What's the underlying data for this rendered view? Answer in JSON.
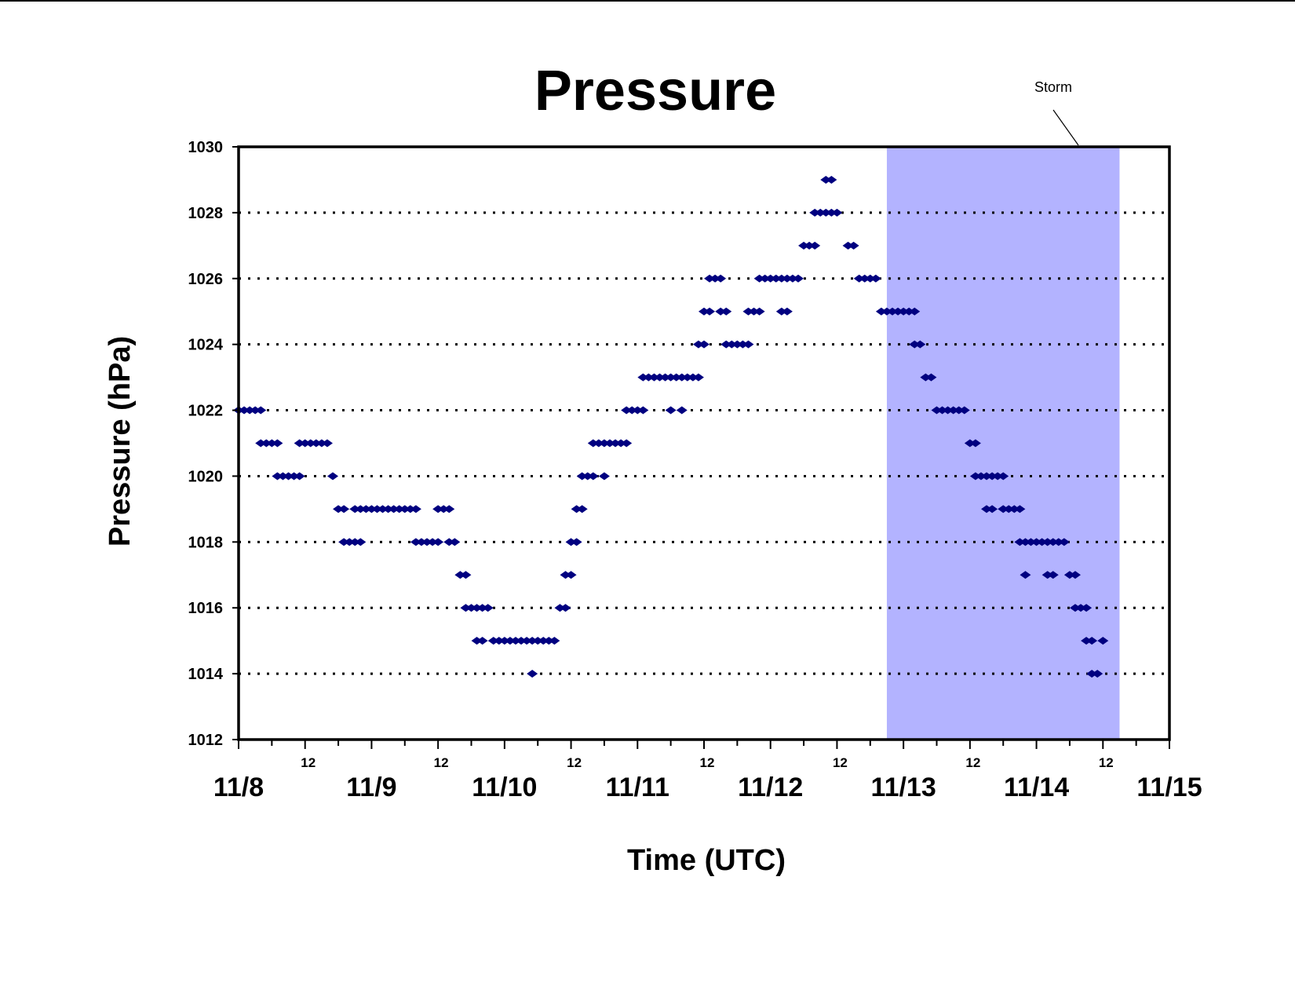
{
  "chart_data": {
    "type": "scatter",
    "title": "Pressure",
    "xlabel": "Time (UTC)",
    "ylabel": "Pressure (hPa)",
    "xlim": [
      "11/8 00",
      "11/15 00"
    ],
    "ylim": [
      1012,
      1030
    ],
    "y_ticks": [
      "1012",
      "1014",
      "1016",
      "1018",
      "1020",
      "1022",
      "1024",
      "1026",
      "1028",
      "1030"
    ],
    "x_major_ticks": [
      "11/8",
      "11/9",
      "11/10",
      "11/11",
      "11/12",
      "11/13",
      "11/14",
      "11/15"
    ],
    "x_minor_label": "12",
    "grid": "horizontal dotted at each major y tick",
    "marker_color": "#000080",
    "shade_color": "#b3b3ff",
    "annotation": {
      "text": "Storm",
      "shaded_range": [
        "11/12 21",
        "11/14 15"
      ]
    },
    "points": [
      [
        "11/8 00",
        1022
      ],
      [
        "11/8 01",
        1022
      ],
      [
        "11/8 02",
        1022
      ],
      [
        "11/8 03",
        1022
      ],
      [
        "11/8 04",
        1022
      ],
      [
        "11/8 04",
        1021
      ],
      [
        "11/8 05",
        1021
      ],
      [
        "11/8 06",
        1021
      ],
      [
        "11/8 07",
        1021
      ],
      [
        "11/8 07",
        1020
      ],
      [
        "11/8 08",
        1020
      ],
      [
        "11/8 09",
        1020
      ],
      [
        "11/8 10",
        1020
      ],
      [
        "11/8 11",
        1020
      ],
      [
        "11/8 11",
        1021
      ],
      [
        "11/8 12",
        1021
      ],
      [
        "11/8 13",
        1021
      ],
      [
        "11/8 14",
        1021
      ],
      [
        "11/8 15",
        1021
      ],
      [
        "11/8 16",
        1021
      ],
      [
        "11/8 17",
        1020
      ],
      [
        "11/8 18",
        1019
      ],
      [
        "11/8 19",
        1019
      ],
      [
        "11/8 19",
        1018
      ],
      [
        "11/8 20",
        1018
      ],
      [
        "11/8 21",
        1018
      ],
      [
        "11/8 22",
        1018
      ],
      [
        "11/8 21",
        1019
      ],
      [
        "11/8 22",
        1019
      ],
      [
        "11/8 23",
        1019
      ],
      [
        "11/9 00",
        1019
      ],
      [
        "11/9 01",
        1019
      ],
      [
        "11/9 02",
        1019
      ],
      [
        "11/9 03",
        1019
      ],
      [
        "11/9 04",
        1019
      ],
      [
        "11/9 05",
        1019
      ],
      [
        "11/9 06",
        1019
      ],
      [
        "11/9 07",
        1019
      ],
      [
        "11/9 08",
        1019
      ],
      [
        "11/9 08",
        1018
      ],
      [
        "11/9 09",
        1018
      ],
      [
        "11/9 10",
        1018
      ],
      [
        "11/9 11",
        1018
      ],
      [
        "11/9 12",
        1018
      ],
      [
        "11/9 12",
        1019
      ],
      [
        "11/9 13",
        1019
      ],
      [
        "11/9 14",
        1019
      ],
      [
        "11/9 14",
        1018
      ],
      [
        "11/9 15",
        1018
      ],
      [
        "11/9 16",
        1017
      ],
      [
        "11/9 17",
        1017
      ],
      [
        "11/9 17",
        1016
      ],
      [
        "11/9 18",
        1016
      ],
      [
        "11/9 19",
        1016
      ],
      [
        "11/9 20",
        1016
      ],
      [
        "11/9 21",
        1016
      ],
      [
        "11/9 19",
        1015
      ],
      [
        "11/9 20",
        1015
      ],
      [
        "11/9 22",
        1015
      ],
      [
        "11/9 23",
        1015
      ],
      [
        "11/10 00",
        1015
      ],
      [
        "11/10 01",
        1015
      ],
      [
        "11/10 02",
        1015
      ],
      [
        "11/10 03",
        1015
      ],
      [
        "11/10 04",
        1015
      ],
      [
        "11/10 05",
        1015
      ],
      [
        "11/10 06",
        1015
      ],
      [
        "11/10 07",
        1015
      ],
      [
        "11/10 08",
        1015
      ],
      [
        "11/10 09",
        1015
      ],
      [
        "11/10 05",
        1014
      ],
      [
        "11/10 10",
        1016
      ],
      [
        "11/10 11",
        1016
      ],
      [
        "11/10 11",
        1017
      ],
      [
        "11/10 12",
        1017
      ],
      [
        "11/10 12",
        1018
      ],
      [
        "11/10 13",
        1018
      ],
      [
        "11/10 13",
        1019
      ],
      [
        "11/10 14",
        1019
      ],
      [
        "11/10 14",
        1020
      ],
      [
        "11/10 15",
        1020
      ],
      [
        "11/10 16",
        1020
      ],
      [
        "11/10 16",
        1021
      ],
      [
        "11/10 17",
        1021
      ],
      [
        "11/10 18",
        1021
      ],
      [
        "11/10 19",
        1021
      ],
      [
        "11/10 20",
        1021
      ],
      [
        "11/10 21",
        1021
      ],
      [
        "11/10 22",
        1021
      ],
      [
        "11/10 18",
        1020
      ],
      [
        "11/10 22",
        1022
      ],
      [
        "11/10 23",
        1022
      ],
      [
        "11/11 00",
        1022
      ],
      [
        "11/11 01",
        1022
      ],
      [
        "11/11 01",
        1023
      ],
      [
        "11/11 02",
        1023
      ],
      [
        "11/11 03",
        1023
      ],
      [
        "11/11 04",
        1023
      ],
      [
        "11/11 05",
        1023
      ],
      [
        "11/11 06",
        1023
      ],
      [
        "11/11 07",
        1023
      ],
      [
        "11/11 06",
        1022
      ],
      [
        "11/11 08",
        1022
      ],
      [
        "11/11 08",
        1023
      ],
      [
        "11/11 09",
        1023
      ],
      [
        "11/11 10",
        1023
      ],
      [
        "11/11 11",
        1023
      ],
      [
        "11/11 11",
        1024
      ],
      [
        "11/11 12",
        1024
      ],
      [
        "11/11 12",
        1025
      ],
      [
        "11/11 13",
        1025
      ],
      [
        "11/11 13",
        1026
      ],
      [
        "11/11 14",
        1026
      ],
      [
        "11/11 15",
        1026
      ],
      [
        "11/11 15",
        1025
      ],
      [
        "11/11 16",
        1025
      ],
      [
        "11/11 16",
        1024
      ],
      [
        "11/11 17",
        1024
      ],
      [
        "11/11 18",
        1024
      ],
      [
        "11/11 19",
        1024
      ],
      [
        "11/11 20",
        1024
      ],
      [
        "11/11 20",
        1025
      ],
      [
        "11/11 21",
        1025
      ],
      [
        "11/11 22",
        1025
      ],
      [
        "11/11 22",
        1026
      ],
      [
        "11/11 23",
        1026
      ],
      [
        "11/12 00",
        1026
      ],
      [
        "11/12 01",
        1026
      ],
      [
        "11/12 02",
        1026
      ],
      [
        "11/12 03",
        1026
      ],
      [
        "11/12 04",
        1026
      ],
      [
        "11/12 05",
        1026
      ],
      [
        "11/12 02",
        1025
      ],
      [
        "11/12 03",
        1025
      ],
      [
        "11/12 06",
        1027
      ],
      [
        "11/12 07",
        1027
      ],
      [
        "11/12 08",
        1027
      ],
      [
        "11/12 08",
        1028
      ],
      [
        "11/12 09",
        1028
      ],
      [
        "11/12 10",
        1028
      ],
      [
        "11/12 11",
        1028
      ],
      [
        "11/12 12",
        1028
      ],
      [
        "11/12 10",
        1029
      ],
      [
        "11/12 11",
        1029
      ],
      [
        "11/12 14",
        1027
      ],
      [
        "11/12 15",
        1027
      ],
      [
        "11/12 16",
        1026
      ],
      [
        "11/12 17",
        1026
      ],
      [
        "11/12 18",
        1026
      ],
      [
        "11/12 19",
        1026
      ],
      [
        "11/12 20",
        1025
      ],
      [
        "11/12 21",
        1025
      ],
      [
        "11/12 22",
        1025
      ],
      [
        "11/12 23",
        1025
      ],
      [
        "11/13 00",
        1025
      ],
      [
        "11/13 01",
        1025
      ],
      [
        "11/13 02",
        1025
      ],
      [
        "11/13 02",
        1024
      ],
      [
        "11/13 03",
        1024
      ],
      [
        "11/13 04",
        1023
      ],
      [
        "11/13 05",
        1023
      ],
      [
        "11/13 06",
        1022
      ],
      [
        "11/13 07",
        1022
      ],
      [
        "11/13 08",
        1022
      ],
      [
        "11/13 09",
        1022
      ],
      [
        "11/13 10",
        1022
      ],
      [
        "11/13 11",
        1022
      ],
      [
        "11/13 12",
        1021
      ],
      [
        "11/13 13",
        1021
      ],
      [
        "11/13 13",
        1020
      ],
      [
        "11/13 14",
        1020
      ],
      [
        "11/13 15",
        1020
      ],
      [
        "11/13 16",
        1020
      ],
      [
        "11/13 17",
        1020
      ],
      [
        "11/13 18",
        1020
      ],
      [
        "11/13 15",
        1019
      ],
      [
        "11/13 16",
        1019
      ],
      [
        "11/13 18",
        1019
      ],
      [
        "11/13 19",
        1019
      ],
      [
        "11/13 20",
        1019
      ],
      [
        "11/13 21",
        1019
      ],
      [
        "11/13 21",
        1018
      ],
      [
        "11/13 22",
        1018
      ],
      [
        "11/13 23",
        1018
      ],
      [
        "11/14 00",
        1018
      ],
      [
        "11/14 01",
        1018
      ],
      [
        "11/14 02",
        1018
      ],
      [
        "11/13 22",
        1017
      ],
      [
        "11/14 02",
        1018
      ],
      [
        "11/14 03",
        1018
      ],
      [
        "11/14 04",
        1018
      ],
      [
        "11/14 05",
        1018
      ],
      [
        "11/14 02",
        1017
      ],
      [
        "11/14 03",
        1017
      ],
      [
        "11/14 06",
        1017
      ],
      [
        "11/14 07",
        1017
      ],
      [
        "11/14 07",
        1016
      ],
      [
        "11/14 08",
        1016
      ],
      [
        "11/14 09",
        1016
      ],
      [
        "11/14 09",
        1015
      ],
      [
        "11/14 10",
        1015
      ],
      [
        "11/14 10",
        1014
      ],
      [
        "11/14 11",
        1014
      ],
      [
        "11/14 12",
        1015
      ]
    ]
  }
}
